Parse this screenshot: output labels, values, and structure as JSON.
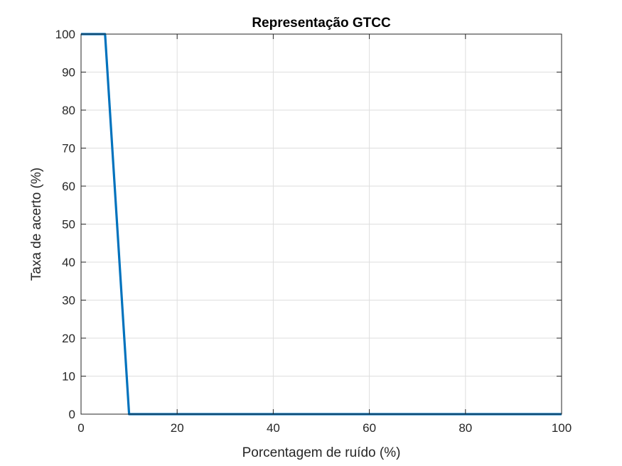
{
  "chart_data": {
    "type": "line",
    "title": "Representação GTCC",
    "xlabel": "Porcentagem de ruído (%)",
    "ylabel": "Taxa de acerto (%)",
    "xlim": [
      0,
      100
    ],
    "ylim": [
      0,
      100
    ],
    "xticks": [
      0,
      20,
      40,
      60,
      80,
      100
    ],
    "yticks": [
      0,
      10,
      20,
      30,
      40,
      50,
      60,
      70,
      80,
      90,
      100
    ],
    "grid": true,
    "series": [
      {
        "x": [
          0,
          5,
          10,
          15,
          20,
          25,
          30,
          35,
          40,
          45,
          50,
          55,
          60,
          65,
          70,
          75,
          80,
          85,
          90,
          95,
          100
        ],
        "y": [
          100,
          100,
          0,
          0,
          0,
          0,
          0,
          0,
          0,
          0,
          0,
          0,
          0,
          0,
          0,
          0,
          0,
          0,
          0,
          0,
          0
        ],
        "color": "#0072BD"
      }
    ]
  }
}
